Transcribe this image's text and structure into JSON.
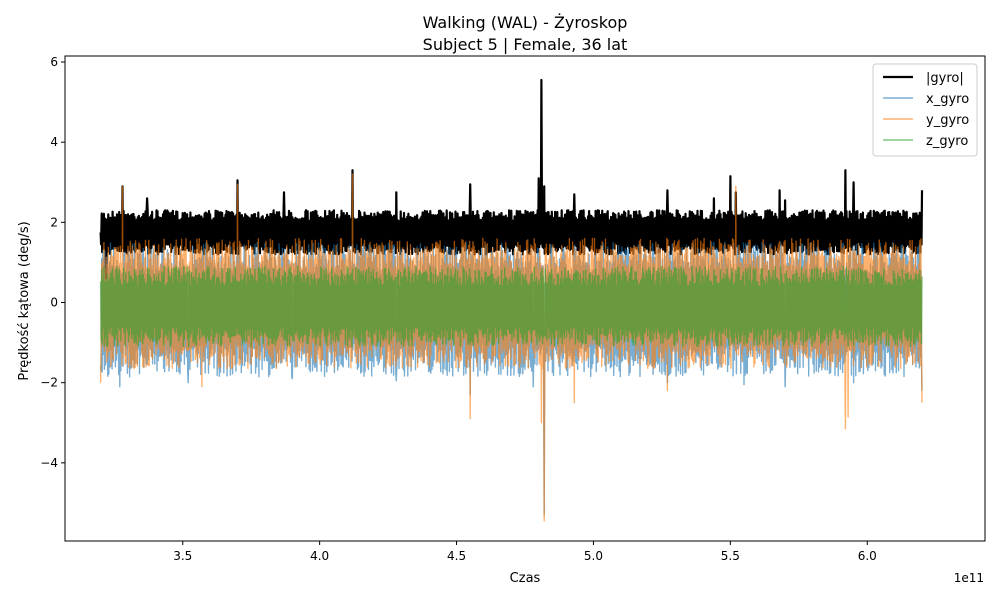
{
  "chart_data": {
    "type": "line",
    "title": "Walking (WAL) - Żyroskop",
    "subtitle": "Subject 5 | Female, 36 lat",
    "xlabel": "Czas",
    "ylabel": "Prędkość kątowa (deg/s)",
    "x_offset_label": "1e11",
    "xlim": [
      3.07,
      6.43
    ],
    "ylim": [
      -5.95,
      6.15
    ],
    "x_ticks": [
      3.5,
      4.0,
      4.5,
      5.0,
      5.5,
      6.0
    ],
    "x_tick_labels": [
      "3.5",
      "4.0",
      "4.5",
      "5.0",
      "5.5",
      "6.0"
    ],
    "y_ticks": [
      -4,
      -2,
      0,
      2,
      4,
      6
    ],
    "y_tick_labels": [
      "−4",
      "−2",
      "0",
      "2",
      "4",
      "6"
    ],
    "legend_position": "top-right",
    "grid": false,
    "series": [
      {
        "name": "|gyro|",
        "color": "#000000",
        "band": [
          1.2,
          2.3
        ],
        "x": [
          3.2,
          3.22,
          3.28,
          3.37,
          3.6,
          3.7,
          3.87,
          3.95,
          4.12,
          4.28,
          4.55,
          4.8,
          4.81,
          4.82,
          4.93,
          5.27,
          5.44,
          5.5,
          5.52,
          5.68,
          5.7,
          5.92,
          5.95,
          6.2
        ],
        "y": [
          1.75,
          0.6,
          2.9,
          2.6,
          2.2,
          3.05,
          2.75,
          2.3,
          3.3,
          2.75,
          2.95,
          3.1,
          5.55,
          2.9,
          2.7,
          2.8,
          2.6,
          3.15,
          2.75,
          2.8,
          2.55,
          3.3,
          3.0,
          2.8
        ]
      },
      {
        "name": "x_gyro",
        "color": "#1f77b4",
        "band": [
          -1.85,
          1.5
        ],
        "x": [
          3.2,
          3.27,
          3.52,
          3.9,
          4.28,
          4.55,
          4.78,
          4.82,
          5.27,
          5.55,
          5.7,
          5.95,
          6.2
        ],
        "y": [
          -1.6,
          -2.1,
          -2.0,
          -1.9,
          -1.95,
          -2.3,
          -2.1,
          -5.3,
          -2.0,
          -2.05,
          -2.1,
          -2.0,
          -2.2
        ]
      },
      {
        "name": "y_gyro",
        "color": "#ff7f0e",
        "band": [
          -1.65,
          1.6
        ],
        "x": [
          3.2,
          3.28,
          3.57,
          3.7,
          4.12,
          4.55,
          4.81,
          4.82,
          4.93,
          5.27,
          5.52,
          5.92,
          5.93,
          6.2
        ],
        "y": [
          -2.0,
          2.9,
          -2.1,
          2.95,
          3.2,
          -2.9,
          -3.0,
          -5.45,
          -2.5,
          -2.2,
          2.9,
          -3.15,
          -2.85,
          -2.5
        ]
      },
      {
        "name": "z_gyro",
        "color": "#2ca02c",
        "band": [
          -1.1,
          0.9
        ],
        "x": [],
        "y": []
      }
    ]
  }
}
